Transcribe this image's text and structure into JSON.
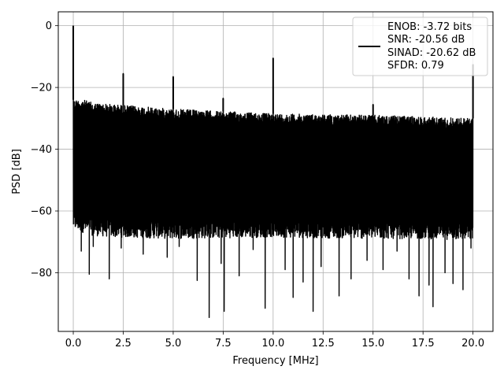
{
  "chart_data": {
    "type": "line",
    "title": "",
    "xlabel": "Frequency [MHz]",
    "ylabel": "PSD [dB]",
    "xlim": [
      -0.75,
      21.0
    ],
    "ylim": [
      -99.0,
      4.5
    ],
    "grid": true,
    "legend_placement": "top-right",
    "x_ticks": [
      0.0,
      2.5,
      5.0,
      7.5,
      10.0,
      12.5,
      15.0,
      17.5,
      20.0
    ],
    "x_tick_labels": [
      "0.0",
      "2.5",
      "5.0",
      "7.5",
      "10.0",
      "12.5",
      "15.0",
      "17.5",
      "20.0"
    ],
    "y_ticks": [
      0,
      -20,
      -40,
      -60,
      -80
    ],
    "y_tick_labels": [
      "0",
      "−20",
      "−40",
      "−60",
      "−80"
    ],
    "legend_lines": [
      "ENOB: -3.72 bits",
      "SNR: -20.56 dB",
      "SINAD: -20.62 dB",
      "SFDR: 0.79"
    ],
    "series": [
      {
        "color": "#000000",
        "frequency_range_mhz": [
          0.0,
          20.0
        ],
        "noise_envelope": {
          "x": [
            0.0,
            0.5,
            1.0,
            2.0,
            5.0,
            10.0,
            15.0,
            17.5,
            20.0
          ],
          "upper_db": [
            -24.0,
            -24.0,
            -25.0,
            -25.5,
            -27.0,
            -28.5,
            -29.0,
            -29.5,
            -30.0
          ],
          "lower_db": [
            -63.0,
            -64.0,
            -65.0,
            -65.5,
            -66.0,
            -65.5,
            -66.0,
            -66.0,
            -66.5
          ]
        },
        "peaks": [
          {
            "x": 0.0,
            "y": 0.0
          },
          {
            "x": 2.5,
            "y": -15.5
          },
          {
            "x": 5.0,
            "y": -16.5
          },
          {
            "x": 7.5,
            "y": -23.5
          },
          {
            "x": 10.0,
            "y": -10.5
          },
          {
            "x": 15.0,
            "y": -25.5
          },
          {
            "x": 20.0,
            "y": -12.5
          }
        ],
        "dips": [
          {
            "x": 0.4,
            "y": -73.0
          },
          {
            "x": 0.8,
            "y": -80.5
          },
          {
            "x": 1.0,
            "y": -71.5
          },
          {
            "x": 1.8,
            "y": -82.0
          },
          {
            "x": 2.4,
            "y": -72.0
          },
          {
            "x": 3.5,
            "y": -74.0
          },
          {
            "x": 4.7,
            "y": -75.0
          },
          {
            "x": 5.3,
            "y": -71.5
          },
          {
            "x": 6.2,
            "y": -82.5
          },
          {
            "x": 6.8,
            "y": -94.5
          },
          {
            "x": 7.4,
            "y": -77.0
          },
          {
            "x": 7.55,
            "y": -92.5
          },
          {
            "x": 8.3,
            "y": -81.0
          },
          {
            "x": 9.0,
            "y": -72.5
          },
          {
            "x": 9.6,
            "y": -91.5
          },
          {
            "x": 10.6,
            "y": -79.0
          },
          {
            "x": 11.0,
            "y": -88.0
          },
          {
            "x": 11.5,
            "y": -83.0
          },
          {
            "x": 12.0,
            "y": -92.5
          },
          {
            "x": 12.4,
            "y": -78.0
          },
          {
            "x": 13.3,
            "y": -87.5
          },
          {
            "x": 13.9,
            "y": -82.0
          },
          {
            "x": 14.7,
            "y": -76.0
          },
          {
            "x": 15.5,
            "y": -79.0
          },
          {
            "x": 16.2,
            "y": -73.0
          },
          {
            "x": 16.8,
            "y": -82.0
          },
          {
            "x": 17.3,
            "y": -87.5
          },
          {
            "x": 17.8,
            "y": -84.0
          },
          {
            "x": 18.0,
            "y": -91.0
          },
          {
            "x": 18.6,
            "y": -80.0
          },
          {
            "x": 19.0,
            "y": -83.5
          },
          {
            "x": 19.5,
            "y": -85.5
          },
          {
            "x": 19.9,
            "y": -72.0
          }
        ]
      }
    ]
  }
}
